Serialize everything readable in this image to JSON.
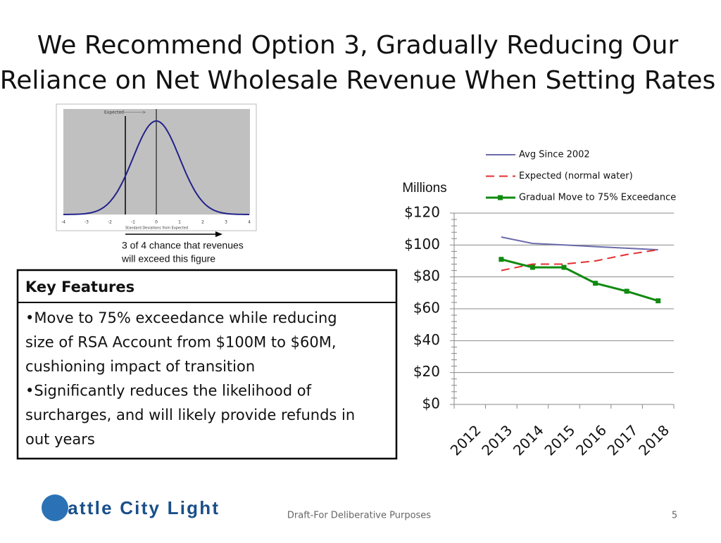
{
  "slide": {
    "title": [
      "We Recommend Option 3, Gradually Reducing Our",
      "Reliance on Net Wholesale Revenue When Setting Rates"
    ],
    "figure": {
      "label": "Expected------------>",
      "xticks": [
        -4,
        -3,
        -2,
        -1,
        0,
        1,
        2,
        3,
        4
      ],
      "xlabel": "Standard Deviations from Expected",
      "caption": [
        "3 of 4 chance that revenues",
        "will exceed this figure"
      ]
    },
    "box": {
      "heading": "Key Features",
      "lines": [
        "•Move to 75% exceedance while reducing",
        "size of RSA Account from $100M to $60M,",
        "cushioning impact of transition",
        "•Significantly reduces the likelihood of",
        "surcharges, and will likely provide refunds in",
        "out years"
      ]
    },
    "logo": "Seattle City Light",
    "footer": "Draft-For Deliberative Purposes",
    "page": "5"
  },
  "chart_data": {
    "type": "line",
    "ylabel": "Millions",
    "categories": [
      "2012",
      "2013",
      "2014",
      "2015",
      "2016",
      "2017",
      "2018"
    ],
    "series": [
      {
        "name": "Avg Since 2002",
        "color": "#6b6bab",
        "dash": false,
        "marker": false,
        "values": [
          null,
          105,
          101,
          100,
          99,
          98,
          97
        ]
      },
      {
        "name": "Expected (normal water)",
        "color": "#e03030",
        "dash": true,
        "marker": false,
        "values": [
          null,
          84,
          88,
          88,
          90,
          94,
          97
        ]
      },
      {
        "name": "Gradual Move to 75% Exceedance",
        "color": "#108a10",
        "dash": false,
        "marker": true,
        "values": [
          null,
          91,
          86,
          86,
          76,
          71,
          65
        ]
      }
    ],
    "ylim": [
      0,
      120
    ],
    "yticks": [
      {
        "value": 0,
        "label": "$0"
      },
      {
        "value": 20,
        "label": "$20"
      },
      {
        "value": 40,
        "label": "$40"
      },
      {
        "value": 60,
        "label": "$60"
      },
      {
        "value": 80,
        "label": "$80"
      },
      {
        "value": 100,
        "label": "$100"
      },
      {
        "value": 120,
        "label": "$120"
      }
    ],
    "grid": true
  }
}
